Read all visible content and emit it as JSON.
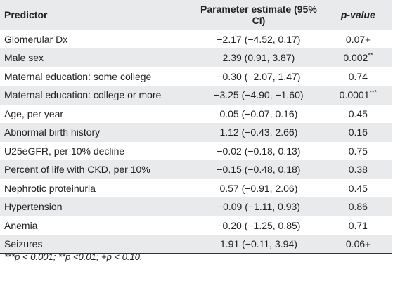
{
  "table": {
    "headers": {
      "predictor": "Predictor",
      "estimate": "Parameter estimate (95% CI)",
      "pvalue": "p-value"
    },
    "rows": [
      {
        "predictor": "Glomerular Dx",
        "estimate": "−2.17 (−4.52, 0.17)",
        "pvalue": "0.07",
        "mark": "+"
      },
      {
        "predictor": "Male sex",
        "estimate": "2.39 (0.91, 3.87)",
        "pvalue": "0.002",
        "mark": "**"
      },
      {
        "predictor": "Maternal education: some college",
        "estimate": "−0.30 (−2.07, 1.47)",
        "pvalue": "0.74",
        "mark": ""
      },
      {
        "predictor": "Maternal education: college or more",
        "estimate": "−3.25 (−4.90, −1.60)",
        "pvalue": "0.0001",
        "mark": "***"
      },
      {
        "predictor": "Age, per year",
        "estimate": "0.05 (−0.07, 0.16)",
        "pvalue": "0.45",
        "mark": ""
      },
      {
        "predictor": "Abnormal birth history",
        "estimate": "1.12 (−0.43, 2.66)",
        "pvalue": "0.16",
        "mark": ""
      },
      {
        "predictor": "U25eGFR, per 10% decline",
        "estimate": "−0.02 (−0.18, 0.13)",
        "pvalue": "0.75",
        "mark": ""
      },
      {
        "predictor": "Percent of life with CKD, per 10%",
        "estimate": "−0.15 (−0.48, 0.18)",
        "pvalue": "0.38",
        "mark": ""
      },
      {
        "predictor": "Nephrotic proteinuria",
        "estimate": "0.57 (−0.91, 2.06)",
        "pvalue": "0.45",
        "mark": ""
      },
      {
        "predictor": "Hypertension",
        "estimate": "−0.09 (−1.11, 0.93)",
        "pvalue": "0.86",
        "mark": ""
      },
      {
        "predictor": "Anemia",
        "estimate": "−0.20 (−1.25, 0.85)",
        "pvalue": "0.71",
        "mark": ""
      },
      {
        "predictor": "Seizures",
        "estimate": "1.91 (−0.11, 3.94)",
        "pvalue": "0.06",
        "mark": "+"
      }
    ]
  },
  "footnote": "***p < 0.001; **p <0.01; +p < 0.10."
}
